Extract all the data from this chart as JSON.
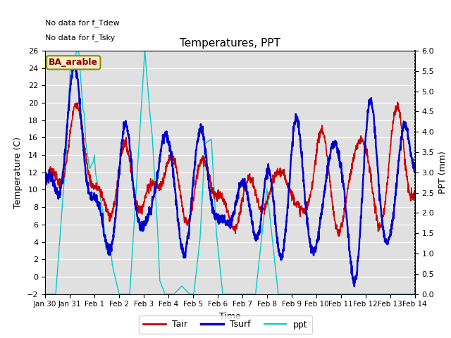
{
  "title": "Temperatures, PPT",
  "xlabel": "Time",
  "ylabel_left": "Temperature (C)",
  "ylabel_right": "PPT (mm)",
  "ylim_left": [
    -2,
    26
  ],
  "ylim_right": [
    0.0,
    6.0
  ],
  "yticks_left": [
    -2,
    0,
    2,
    4,
    6,
    8,
    10,
    12,
    14,
    16,
    18,
    20,
    22,
    24,
    26
  ],
  "yticks_right": [
    0.0,
    0.5,
    1.0,
    1.5,
    2.0,
    2.5,
    3.0,
    3.5,
    4.0,
    4.5,
    5.0,
    5.5,
    6.0
  ],
  "xtick_labels": [
    "Jan 30",
    "Jan 31",
    "Feb 1",
    "Feb 2",
    "Feb 3",
    "Feb 4",
    "Feb 5",
    "Feb 6",
    "Feb 7",
    "Feb 8",
    "Feb 9",
    "Feb 10",
    "Feb 11",
    "Feb 12",
    "Feb 13",
    "Feb 14"
  ],
  "annotation1": "No data for f_Tdew",
  "annotation2": "No data for f_Tsky",
  "site_label": "BA_arable",
  "bg_color": "#e0e0e0",
  "tair_color": "#cc0000",
  "tsurf_color": "#0000cc",
  "ppt_color": "#00cccc",
  "legend_tair": "Tair",
  "legend_tsurf": "Tsurf",
  "legend_ppt": "ppt"
}
